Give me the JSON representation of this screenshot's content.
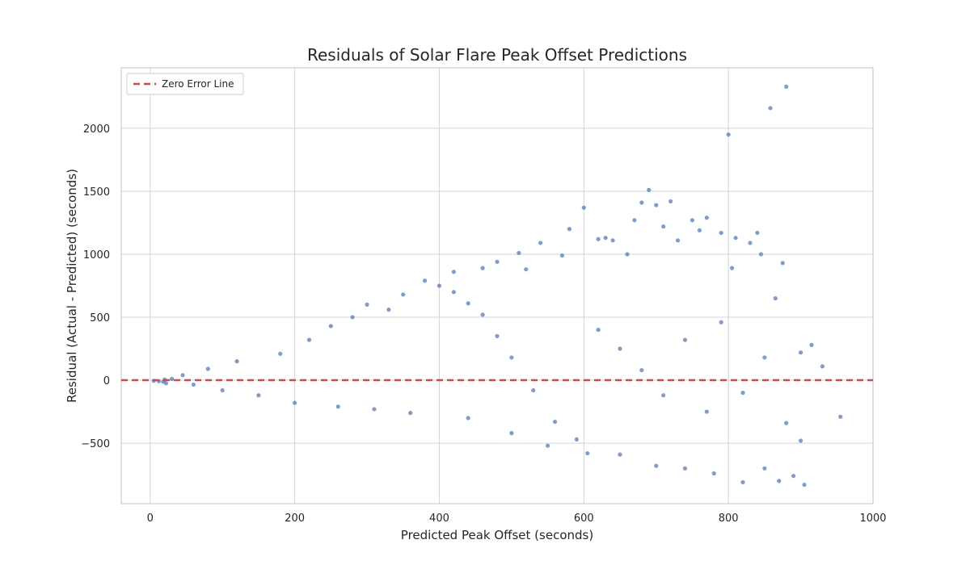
{
  "chart_data": {
    "type": "scatter",
    "title": "Residuals of Solar Flare Peak Offset Predictions",
    "xlabel": "Predicted Peak Offset (seconds)",
    "ylabel": "Residual (Actual - Predicted) (seconds)",
    "xlim": [
      -40,
      1000
    ],
    "ylim": [
      -980,
      2480
    ],
    "xticks": [
      0,
      200,
      400,
      600,
      800,
      1000
    ],
    "yticks": [
      -500,
      0,
      500,
      1000,
      1500,
      2000
    ],
    "xtick_labels": [
      "0",
      "200",
      "400",
      "600",
      "800",
      "1000"
    ],
    "ytick_labels": [
      "−500",
      "0",
      "500",
      "1000",
      "1500",
      "2000"
    ],
    "grid": true,
    "legend": {
      "position": "top-left",
      "entries": [
        {
          "label": "Zero Error Line",
          "style": "dashed",
          "color": "#c44e52"
        }
      ]
    },
    "reference_line": {
      "y": 0,
      "label": "Zero Error Line",
      "color": "#c44e52",
      "style": "dashed"
    },
    "series": [
      {
        "color": "#4c72b0",
        "points": [
          [
            5,
            -5
          ],
          [
            12,
            -8
          ],
          [
            18,
            -12
          ],
          [
            20,
            5
          ],
          [
            22,
            -25
          ],
          [
            30,
            10
          ],
          [
            45,
            40
          ],
          [
            60,
            -35
          ],
          [
            80,
            90
          ],
          [
            100,
            -80
          ],
          [
            120,
            150
          ],
          [
            150,
            -120
          ],
          [
            180,
            210
          ],
          [
            200,
            -180
          ],
          [
            220,
            320
          ],
          [
            250,
            430
          ],
          [
            260,
            -210
          ],
          [
            280,
            500
          ],
          [
            300,
            600
          ],
          [
            310,
            -230
          ],
          [
            330,
            560
          ],
          [
            350,
            680
          ],
          [
            360,
            -260
          ],
          [
            380,
            790
          ],
          [
            400,
            750
          ],
          [
            420,
            860
          ],
          [
            440,
            -300
          ],
          [
            460,
            890
          ],
          [
            480,
            940
          ],
          [
            500,
            -420
          ],
          [
            510,
            1010
          ],
          [
            520,
            880
          ],
          [
            540,
            1090
          ],
          [
            550,
            -520
          ],
          [
            570,
            990
          ],
          [
            580,
            1200
          ],
          [
            600,
            1370
          ],
          [
            605,
            -580
          ],
          [
            620,
            1120
          ],
          [
            630,
            1130
          ],
          [
            640,
            1110
          ],
          [
            650,
            -590
          ],
          [
            660,
            1000
          ],
          [
            670,
            1270
          ],
          [
            680,
            1410
          ],
          [
            690,
            1510
          ],
          [
            700,
            1390
          ],
          [
            700,
            -680
          ],
          [
            710,
            1220
          ],
          [
            720,
            1420
          ],
          [
            730,
            1110
          ],
          [
            740,
            -700
          ],
          [
            750,
            1270
          ],
          [
            760,
            1190
          ],
          [
            770,
            1290
          ],
          [
            780,
            -740
          ],
          [
            790,
            1170
          ],
          [
            800,
            1950
          ],
          [
            805,
            890
          ],
          [
            810,
            1130
          ],
          [
            820,
            -810
          ],
          [
            830,
            1090
          ],
          [
            840,
            1170
          ],
          [
            845,
            1000
          ],
          [
            850,
            -700
          ],
          [
            858,
            2160
          ],
          [
            865,
            650
          ],
          [
            870,
            -800
          ],
          [
            875,
            930
          ],
          [
            880,
            2330
          ],
          [
            890,
            -760
          ],
          [
            900,
            220
          ],
          [
            905,
            -830
          ],
          [
            915,
            280
          ],
          [
            955,
            -290
          ],
          [
            420,
            700
          ],
          [
            440,
            610
          ],
          [
            460,
            520
          ],
          [
            480,
            350
          ],
          [
            500,
            180
          ],
          [
            530,
            -80
          ],
          [
            560,
            -330
          ],
          [
            590,
            -470
          ],
          [
            620,
            400
          ],
          [
            650,
            250
          ],
          [
            680,
            80
          ],
          [
            710,
            -120
          ],
          [
            740,
            320
          ],
          [
            770,
            -250
          ],
          [
            790,
            460
          ],
          [
            820,
            -100
          ],
          [
            850,
            180
          ],
          [
            880,
            -340
          ],
          [
            900,
            -480
          ],
          [
            930,
            110
          ]
        ]
      }
    ]
  }
}
